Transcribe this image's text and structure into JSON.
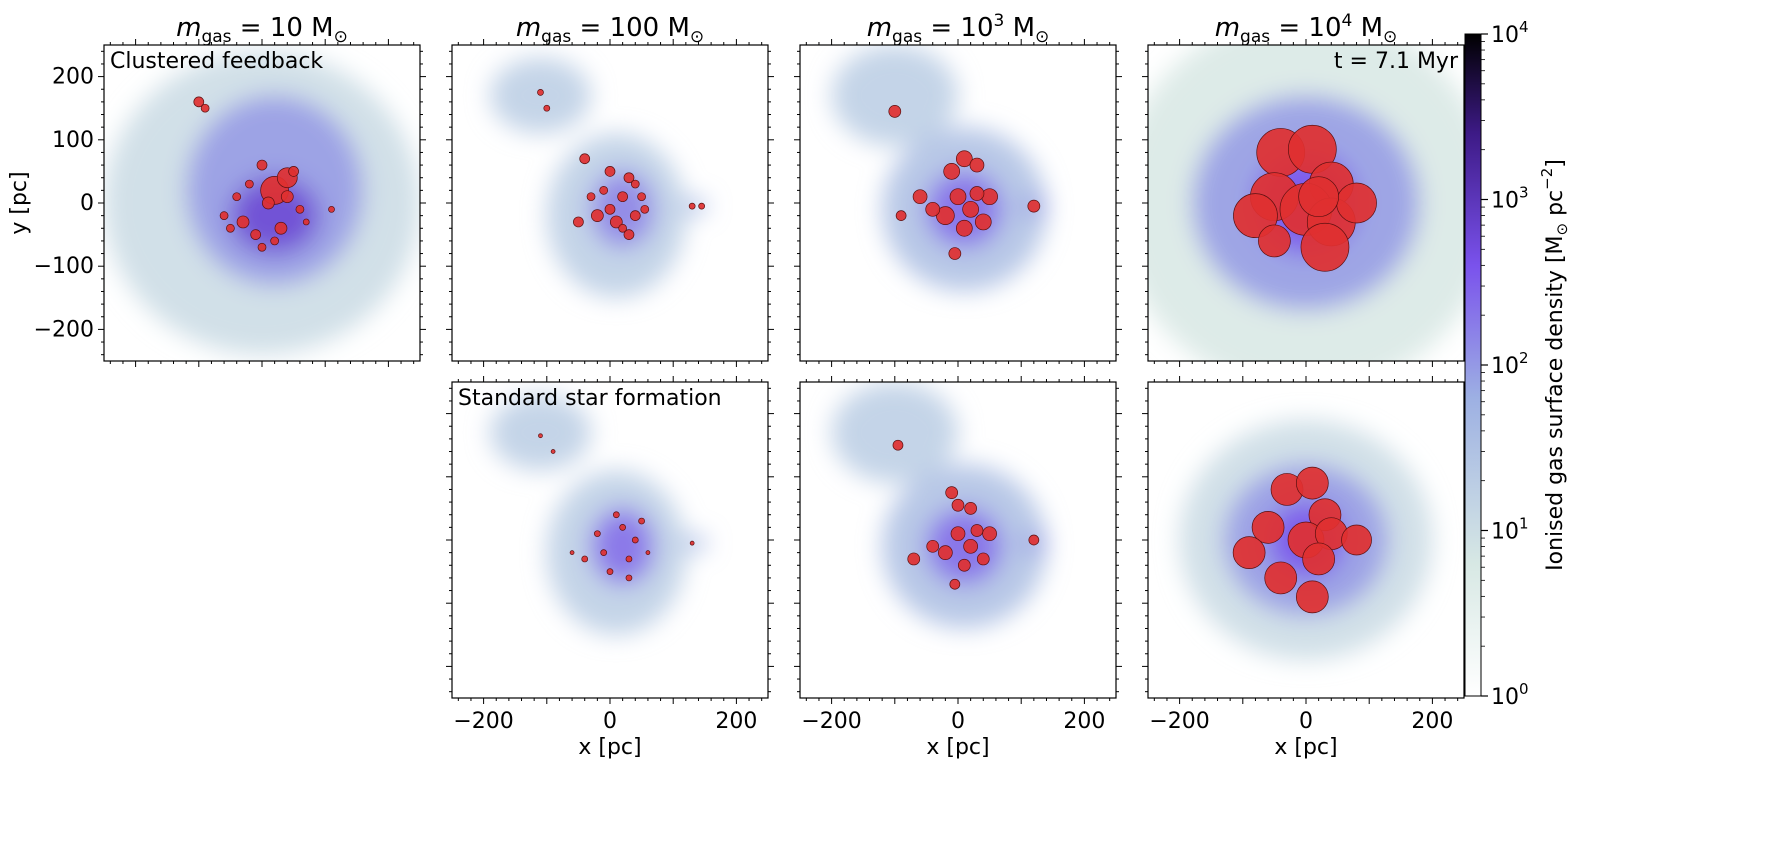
{
  "chart_data": {
    "type": "heatmap",
    "xlabel": "x [pc]",
    "ylabel": "y [pc]",
    "xlim": [
      -250,
      250
    ],
    "ylim": [
      -250,
      250
    ],
    "xticks": [
      -200,
      0,
      200
    ],
    "yticks": [
      -200,
      -100,
      0,
      100,
      200
    ],
    "tick_labels": {
      "x": [
        "−200",
        "0",
        "200"
      ],
      "y": [
        "−200",
        "−100",
        "0",
        "100",
        "200"
      ]
    },
    "column_titles": [
      {
        "base": "m",
        "sub": "gas",
        "eq": " = 10 M",
        "sun": "⊙",
        "exp": ""
      },
      {
        "base": "m",
        "sub": "gas",
        "eq": " = 100 M",
        "sun": "⊙",
        "exp": ""
      },
      {
        "base": "m",
        "sub": "gas",
        "eq": " = 10",
        "exp": "3",
        "tail": " M",
        "sun": "⊙"
      },
      {
        "base": "m",
        "sub": "gas",
        "eq": " = 10",
        "exp": "4",
        "tail": " M",
        "sun": "⊙"
      }
    ],
    "row_labels": [
      "Clustered feedback",
      "Standard star formation"
    ],
    "time_label": "t = 7.1 Myr",
    "colorbar": {
      "label_main": "Ionised gas surface density [M",
      "label_sun": "⊙",
      "label_unit": " pc",
      "label_exp": "−2",
      "label_close": "]",
      "scale": "log",
      "range": [
        1,
        10000
      ],
      "ticks": [
        {
          "value": 1,
          "base": "10",
          "exp": "0"
        },
        {
          "value": 10,
          "base": "10",
          "exp": "1"
        },
        {
          "value": 100,
          "base": "10",
          "exp": "2"
        },
        {
          "value": 1000,
          "base": "10",
          "exp": "3"
        },
        {
          "value": 10000,
          "base": "10",
          "exp": "4"
        }
      ],
      "colors": [
        "#ffffff",
        "#d7e8e4",
        "#9db0e3",
        "#7a52ec",
        "#3d1a86",
        "#000000"
      ]
    },
    "marker_color": "#e03030",
    "panels": [
      {
        "id": "clustered-10",
        "row": 0,
        "col": 0,
        "gas_blobs": [
          {
            "x": 0,
            "y": 0,
            "rx": 250,
            "ry": 240,
            "level": 0.25
          },
          {
            "x": 20,
            "y": 20,
            "rx": 140,
            "ry": 150,
            "level": 0.45
          },
          {
            "x": 20,
            "y": -20,
            "rx": 70,
            "ry": 60,
            "level": 0.65
          }
        ],
        "stars": [
          {
            "x": 20,
            "y": 20,
            "r": 14
          },
          {
            "x": 40,
            "y": 40,
            "r": 10
          },
          {
            "x": -100,
            "y": 160,
            "r": 5
          },
          {
            "x": -90,
            "y": 150,
            "r": 4
          },
          {
            "x": 0,
            "y": 60,
            "r": 5
          },
          {
            "x": 10,
            "y": 0,
            "r": 6
          },
          {
            "x": -30,
            "y": -30,
            "r": 6
          },
          {
            "x": 30,
            "y": -40,
            "r": 6
          },
          {
            "x": 60,
            "y": -10,
            "r": 4
          },
          {
            "x": -60,
            "y": -20,
            "r": 4
          },
          {
            "x": 0,
            "y": -70,
            "r": 4
          },
          {
            "x": 50,
            "y": 50,
            "r": 5
          },
          {
            "x": -20,
            "y": 30,
            "r": 4
          },
          {
            "x": 40,
            "y": 10,
            "r": 6
          },
          {
            "x": -10,
            "y": -50,
            "r": 5
          },
          {
            "x": 70,
            "y": -30,
            "r": 3
          },
          {
            "x": -40,
            "y": 10,
            "r": 4
          },
          {
            "x": 20,
            "y": -60,
            "r": 4
          },
          {
            "x": 110,
            "y": -10,
            "r": 3
          },
          {
            "x": -50,
            "y": -40,
            "r": 4
          }
        ]
      },
      {
        "id": "clustered-100",
        "row": 0,
        "col": 1,
        "gas_blobs": [
          {
            "x": -110,
            "y": 170,
            "rx": 80,
            "ry": 60,
            "level": 0.3
          },
          {
            "x": 10,
            "y": -20,
            "rx": 110,
            "ry": 130,
            "level": 0.3
          },
          {
            "x": 20,
            "y": -10,
            "rx": 50,
            "ry": 60,
            "level": 0.5
          },
          {
            "x": 135,
            "y": -5,
            "rx": 20,
            "ry": 12,
            "level": 0.4
          }
        ],
        "stars": [
          {
            "x": -110,
            "y": 175,
            "r": 3
          },
          {
            "x": -100,
            "y": 150,
            "r": 3
          },
          {
            "x": -40,
            "y": 70,
            "r": 5
          },
          {
            "x": 0,
            "y": 50,
            "r": 5
          },
          {
            "x": 30,
            "y": 40,
            "r": 5
          },
          {
            "x": 20,
            "y": 10,
            "r": 5
          },
          {
            "x": -20,
            "y": -20,
            "r": 6
          },
          {
            "x": 10,
            "y": -30,
            "r": 6
          },
          {
            "x": 40,
            "y": -20,
            "r": 5
          },
          {
            "x": -50,
            "y": -30,
            "r": 5
          },
          {
            "x": 30,
            "y": -50,
            "r": 5
          },
          {
            "x": 50,
            "y": 10,
            "r": 4
          },
          {
            "x": -10,
            "y": 20,
            "r": 4
          },
          {
            "x": 0,
            "y": -10,
            "r": 5
          },
          {
            "x": 20,
            "y": -40,
            "r": 4
          },
          {
            "x": -30,
            "y": 10,
            "r": 4
          },
          {
            "x": 40,
            "y": 30,
            "r": 4
          },
          {
            "x": 55,
            "y": -10,
            "r": 4
          },
          {
            "x": 130,
            "y": -5,
            "r": 3
          },
          {
            "x": 145,
            "y": -5,
            "r": 3
          }
        ]
      },
      {
        "id": "clustered-1000",
        "row": 0,
        "col": 2,
        "gas_blobs": [
          {
            "x": -100,
            "y": 170,
            "rx": 100,
            "ry": 80,
            "level": 0.3
          },
          {
            "x": 10,
            "y": -10,
            "rx": 130,
            "ry": 130,
            "level": 0.35
          },
          {
            "x": 10,
            "y": -10,
            "rx": 60,
            "ry": 60,
            "level": 0.55
          },
          {
            "x": 120,
            "y": -5,
            "rx": 20,
            "ry": 15,
            "level": 0.45
          }
        ],
        "stars": [
          {
            "x": -100,
            "y": 145,
            "r": 6
          },
          {
            "x": 10,
            "y": 70,
            "r": 8
          },
          {
            "x": -10,
            "y": 50,
            "r": 8
          },
          {
            "x": 30,
            "y": 60,
            "r": 7
          },
          {
            "x": 0,
            "y": 10,
            "r": 8
          },
          {
            "x": 20,
            "y": -10,
            "r": 8
          },
          {
            "x": -20,
            "y": -20,
            "r": 9
          },
          {
            "x": 40,
            "y": -30,
            "r": 8
          },
          {
            "x": 10,
            "y": -40,
            "r": 8
          },
          {
            "x": -40,
            "y": -10,
            "r": 7
          },
          {
            "x": -60,
            "y": 10,
            "r": 7
          },
          {
            "x": 50,
            "y": 10,
            "r": 8
          },
          {
            "x": -5,
            "y": -80,
            "r": 6
          },
          {
            "x": -90,
            "y": -20,
            "r": 5
          },
          {
            "x": 120,
            "y": -5,
            "r": 6
          },
          {
            "x": 30,
            "y": 15,
            "r": 7
          }
        ]
      },
      {
        "id": "clustered-10000",
        "row": 0,
        "col": 3,
        "gas_blobs": [
          {
            "x": 0,
            "y": 0,
            "rx": 300,
            "ry": 300,
            "level": 0.2
          },
          {
            "x": 0,
            "y": 0,
            "rx": 180,
            "ry": 170,
            "level": 0.45
          },
          {
            "x": 0,
            "y": 0,
            "rx": 80,
            "ry": 80,
            "level": 0.6
          }
        ],
        "stars": [
          {
            "x": -40,
            "y": 80,
            "r": 24
          },
          {
            "x": 10,
            "y": 85,
            "r": 24
          },
          {
            "x": 40,
            "y": 30,
            "r": 22
          },
          {
            "x": -50,
            "y": 10,
            "r": 24
          },
          {
            "x": 0,
            "y": -10,
            "r": 26
          },
          {
            "x": 40,
            "y": -30,
            "r": 24
          },
          {
            "x": -80,
            "y": -20,
            "r": 22
          },
          {
            "x": -50,
            "y": -60,
            "r": 16
          },
          {
            "x": 30,
            "y": -70,
            "r": 24
          },
          {
            "x": 80,
            "y": 0,
            "r": 20
          },
          {
            "x": 20,
            "y": 10,
            "r": 20
          }
        ]
      },
      {
        "id": "standard-100",
        "row": 1,
        "col": 1,
        "gas_blobs": [
          {
            "x": -110,
            "y": 170,
            "rx": 80,
            "ry": 60,
            "level": 0.3
          },
          {
            "x": 10,
            "y": -20,
            "rx": 110,
            "ry": 130,
            "level": 0.3
          },
          {
            "x": 20,
            "y": -10,
            "rx": 50,
            "ry": 60,
            "level": 0.55
          },
          {
            "x": 135,
            "y": -5,
            "rx": 20,
            "ry": 12,
            "level": 0.4
          }
        ],
        "stars": [
          {
            "x": -110,
            "y": 165,
            "r": 2
          },
          {
            "x": -90,
            "y": 140,
            "r": 2
          },
          {
            "x": 20,
            "y": 20,
            "r": 3
          },
          {
            "x": -10,
            "y": -20,
            "r": 3
          },
          {
            "x": 30,
            "y": -30,
            "r": 3
          },
          {
            "x": -40,
            "y": -30,
            "r": 3
          },
          {
            "x": 10,
            "y": 40,
            "r": 3
          },
          {
            "x": 40,
            "y": 0,
            "r": 3
          },
          {
            "x": -20,
            "y": 10,
            "r": 3
          },
          {
            "x": 0,
            "y": -50,
            "r": 3
          },
          {
            "x": 30,
            "y": -60,
            "r": 3
          },
          {
            "x": 50,
            "y": 30,
            "r": 3
          },
          {
            "x": -60,
            "y": -20,
            "r": 2
          },
          {
            "x": 60,
            "y": -20,
            "r": 2
          },
          {
            "x": 130,
            "y": -5,
            "r": 2
          }
        ]
      },
      {
        "id": "standard-1000",
        "row": 1,
        "col": 2,
        "gas_blobs": [
          {
            "x": -100,
            "y": 170,
            "rx": 100,
            "ry": 80,
            "level": 0.3
          },
          {
            "x": 10,
            "y": -10,
            "rx": 130,
            "ry": 130,
            "level": 0.35
          },
          {
            "x": 10,
            "y": -10,
            "rx": 60,
            "ry": 60,
            "level": 0.55
          },
          {
            "x": 120,
            "y": -5,
            "rx": 20,
            "ry": 15,
            "level": 0.45
          }
        ],
        "stars": [
          {
            "x": -95,
            "y": 150,
            "r": 5
          },
          {
            "x": -10,
            "y": 75,
            "r": 6
          },
          {
            "x": 0,
            "y": 55,
            "r": 6
          },
          {
            "x": 20,
            "y": 50,
            "r": 6
          },
          {
            "x": 0,
            "y": 10,
            "r": 7
          },
          {
            "x": 20,
            "y": -10,
            "r": 7
          },
          {
            "x": -20,
            "y": -20,
            "r": 7
          },
          {
            "x": 40,
            "y": -30,
            "r": 6
          },
          {
            "x": 10,
            "y": -40,
            "r": 6
          },
          {
            "x": -40,
            "y": -10,
            "r": 6
          },
          {
            "x": -70,
            "y": -30,
            "r": 6
          },
          {
            "x": 50,
            "y": 10,
            "r": 7
          },
          {
            "x": -5,
            "y": -70,
            "r": 5
          },
          {
            "x": 120,
            "y": 0,
            "r": 5
          },
          {
            "x": 30,
            "y": 15,
            "r": 6
          }
        ]
      },
      {
        "id": "standard-10000",
        "row": 1,
        "col": 3,
        "gas_blobs": [
          {
            "x": 0,
            "y": 0,
            "rx": 200,
            "ry": 190,
            "level": 0.25
          },
          {
            "x": 0,
            "y": 0,
            "rx": 130,
            "ry": 120,
            "level": 0.45
          },
          {
            "x": 0,
            "y": 0,
            "rx": 60,
            "ry": 60,
            "level": 0.6
          }
        ],
        "stars": [
          {
            "x": -30,
            "y": 80,
            "r": 16
          },
          {
            "x": 10,
            "y": 90,
            "r": 16
          },
          {
            "x": 30,
            "y": 40,
            "r": 16
          },
          {
            "x": -60,
            "y": 20,
            "r": 16
          },
          {
            "x": 0,
            "y": 0,
            "r": 18
          },
          {
            "x": 40,
            "y": 10,
            "r": 16
          },
          {
            "x": -90,
            "y": -20,
            "r": 16
          },
          {
            "x": -40,
            "y": -60,
            "r": 16
          },
          {
            "x": 10,
            "y": -90,
            "r": 16
          },
          {
            "x": 80,
            "y": 0,
            "r": 15
          },
          {
            "x": 20,
            "y": -30,
            "r": 16
          }
        ]
      }
    ]
  }
}
